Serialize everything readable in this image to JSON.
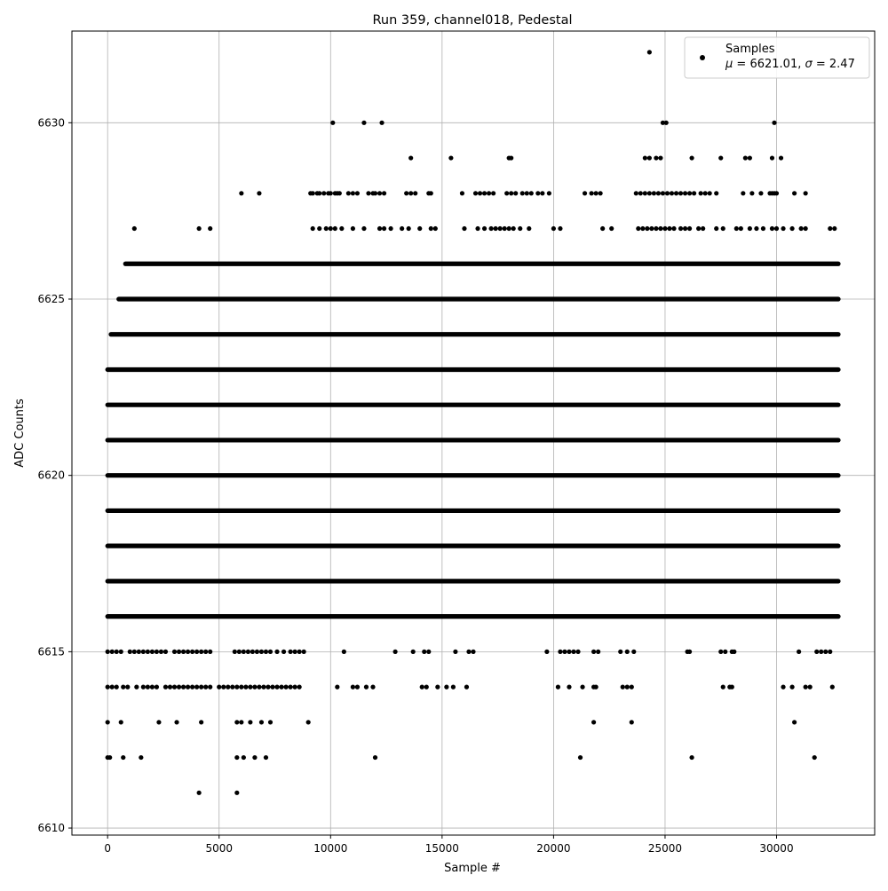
{
  "chart_data": {
    "type": "scatter",
    "title": "Run 359, channel018, Pedestal",
    "xlabel": "Sample #",
    "ylabel": "ADC Counts",
    "xlim": [
      -1600,
      34400
    ],
    "ylim": [
      6609.8,
      6632.6
    ],
    "x_ticks": [
      0,
      5000,
      10000,
      15000,
      20000,
      25000,
      30000
    ],
    "y_ticks": [
      6610,
      6615,
      6620,
      6625,
      6630
    ],
    "grid": true,
    "legend_placement": "top-right",
    "legend": {
      "label": "Samples",
      "stats": {
        "mu": "6621.01",
        "sigma": "2.47"
      }
    },
    "n_samples": 32768,
    "series": [
      {
        "name": "Samples",
        "color": "#000000",
        "marker": "circle",
        "dense_levels": [
          {
            "y": 6616,
            "x_range": [
              0,
              32768
            ]
          },
          {
            "y": 6617,
            "x_range": [
              0,
              32768
            ]
          },
          {
            "y": 6618,
            "x_range": [
              0,
              32768
            ]
          },
          {
            "y": 6619,
            "x_range": [
              0,
              32768
            ]
          },
          {
            "y": 6620,
            "x_range": [
              0,
              32768
            ]
          },
          {
            "y": 6621,
            "x_range": [
              0,
              32768
            ]
          },
          {
            "y": 6622,
            "x_range": [
              0,
              32768
            ]
          },
          {
            "y": 6623,
            "x_range": [
              0,
              32768
            ]
          },
          {
            "y": 6624,
            "x_range": [
              150,
              32768
            ]
          },
          {
            "y": 6625,
            "x_range": [
              500,
              32768
            ]
          },
          {
            "y": 6626,
            "x_range": [
              800,
              32768
            ]
          }
        ],
        "sparse_points": {
          "6630": [
            10100,
            11500,
            12300,
            24900,
            25050,
            29900
          ],
          "6632": [
            24300
          ],
          "6629": [
            13600,
            15400,
            18000,
            18100,
            24100,
            24300,
            24600,
            24800,
            26200,
            27500,
            28600,
            28800,
            29800,
            30200
          ],
          "6628": [
            6000,
            6800,
            9100,
            9200,
            9400,
            9500,
            9700,
            9900,
            10000,
            10200,
            10300,
            10400,
            10800,
            11000,
            11200,
            11700,
            11900,
            12000,
            12200,
            12400,
            13400,
            13600,
            13800,
            14400,
            14500,
            15900,
            16500,
            16700,
            16900,
            17100,
            17300,
            17900,
            18100,
            18300,
            18600,
            18800,
            19000,
            19300,
            19500,
            19800,
            21400,
            21700,
            21900,
            22100,
            23700,
            23900,
            24100,
            24300,
            24500,
            24700,
            24900,
            25100,
            25300,
            25500,
            25700,
            25900,
            26100,
            26300,
            26600,
            26800,
            27000,
            27300,
            28500,
            28900,
            29300,
            29700,
            29800,
            29900,
            30000,
            30800,
            31300
          ],
          "6627": [
            1200,
            4100,
            4600,
            9200,
            9500,
            9800,
            10000,
            10200,
            10500,
            11000,
            11500,
            12200,
            12400,
            12700,
            13200,
            13500,
            14000,
            14500,
            14700,
            16000,
            16600,
            16900,
            17200,
            17400,
            17600,
            17800,
            18000,
            18200,
            18500,
            18900,
            20000,
            20300,
            22200,
            22600,
            23800,
            24000,
            24200,
            24400,
            24600,
            24800,
            25000,
            25200,
            25400,
            25700,
            25900,
            26100,
            26500,
            26700,
            27300,
            27600,
            28200,
            28400,
            28800,
            29100,
            29400,
            29800,
            30000,
            30300,
            30700,
            31100,
            31300,
            32400,
            32600
          ],
          "6614": [
            0,
            200,
            400,
            700,
            900,
            1300,
            1600,
            1800,
            2000,
            2200,
            2600,
            2800,
            3000,
            3200,
            3400,
            3600,
            3800,
            4000,
            4200,
            4400,
            4600,
            5000,
            5200,
            5400,
            5600,
            5800,
            6000,
            6200,
            6400,
            6600,
            6800,
            7000,
            7200,
            7400,
            7600,
            7800,
            8000,
            8200,
            8400,
            8600,
            10300,
            11000,
            11200,
            11600,
            11900,
            14100,
            14300,
            14800,
            15200,
            15500,
            16100,
            20200,
            20700,
            21300,
            21800,
            21900,
            23100,
            23300,
            23500,
            27600,
            27900,
            28000,
            30300,
            30700,
            31300,
            31500,
            32500
          ],
          "6615": [
            0,
            200,
            400,
            600,
            1000,
            1200,
            1400,
            1600,
            1800,
            2000,
            2200,
            2400,
            2600,
            3000,
            3200,
            3400,
            3600,
            3800,
            4000,
            4200,
            4400,
            4600,
            5700,
            5900,
            6100,
            6300,
            6500,
            6700,
            6900,
            7100,
            7300,
            7600,
            7900,
            8200,
            8400,
            8600,
            8800,
            10600,
            12900,
            13700,
            14200,
            14400,
            15600,
            16200,
            16400,
            19700,
            20300,
            20500,
            20700,
            20900,
            21100,
            21800,
            22000,
            23000,
            23300,
            23600,
            26000,
            26100,
            27500,
            27700,
            28000,
            28100,
            31000,
            31800,
            32000,
            32200,
            32400
          ],
          "6613": [
            0,
            600,
            2300,
            3100,
            4200,
            5800,
            6000,
            6400,
            6900,
            7300,
            9000,
            21800,
            23500,
            30800
          ],
          "6612": [
            0,
            100,
            700,
            1500,
            5800,
            6100,
            6600,
            7100,
            12000,
            21200,
            26200,
            31700
          ],
          "6611": [
            4100,
            5800
          ]
        }
      }
    ]
  }
}
